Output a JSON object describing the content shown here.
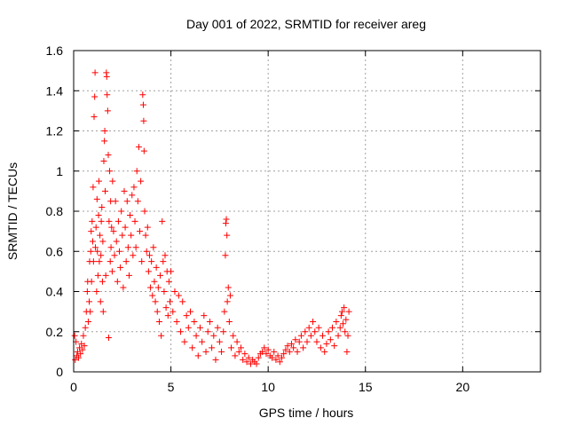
{
  "chart_data": {
    "type": "scatter",
    "title": "Day 001 of 2022, SRMTID for receiver areg",
    "xlabel": "GPS time / hours",
    "ylabel": "SRMTID / TECUs",
    "xlim": [
      0,
      24
    ],
    "ylim": [
      0,
      1.6
    ],
    "grid": true,
    "marker": "+",
    "color": "#ff0000",
    "xticks": [
      0,
      5,
      10,
      15,
      20
    ],
    "xtick_labels": [
      "0",
      "5",
      "10",
      "15",
      "20"
    ],
    "yticks": [
      0,
      0.2,
      0.4,
      0.6,
      0.8,
      1.0,
      1.2,
      1.4,
      1.6
    ],
    "ytick_labels": [
      "0",
      "0.2",
      "0.4",
      "0.6",
      "0.8",
      "1",
      "1.2",
      "1.4",
      "1.6"
    ],
    "series": [
      {
        "name": "SRMTID",
        "points": [
          [
            0.05,
            0.18
          ],
          [
            0.08,
            0.06
          ],
          [
            0.12,
            0.15
          ],
          [
            0.15,
            0.08
          ],
          [
            0.2,
            0.1
          ],
          [
            0.25,
            0.07
          ],
          [
            0.3,
            0.12
          ],
          [
            0.35,
            0.09
          ],
          [
            0.4,
            0.14
          ],
          [
            0.45,
            0.11
          ],
          [
            0.5,
            0.18
          ],
          [
            0.55,
            0.13
          ],
          [
            0.6,
            0.22
          ],
          [
            0.65,
            0.3
          ],
          [
            0.7,
            0.4
          ],
          [
            0.72,
            0.45
          ],
          [
            0.75,
            0.25
          ],
          [
            0.8,
            0.35
          ],
          [
            0.82,
            0.55
          ],
          [
            0.85,
            0.3
          ],
          [
            0.88,
            0.6
          ],
          [
            0.9,
            0.7
          ],
          [
            0.92,
            0.45
          ],
          [
            0.95,
            0.75
          ],
          [
            0.98,
            0.65
          ],
          [
            1.0,
            0.92
          ],
          [
            1.02,
            0.55
          ],
          [
            1.05,
            1.27
          ],
          [
            1.08,
            1.37
          ],
          [
            1.1,
            1.49
          ],
          [
            1.12,
            0.62
          ],
          [
            1.15,
            0.72
          ],
          [
            1.18,
            0.4
          ],
          [
            1.2,
            0.86
          ],
          [
            1.22,
            0.6
          ],
          [
            1.25,
            0.48
          ],
          [
            1.28,
            0.78
          ],
          [
            1.3,
            0.95
          ],
          [
            1.32,
            0.55
          ],
          [
            1.35,
            0.68
          ],
          [
            1.38,
            0.35
          ],
          [
            1.4,
            0.58
          ],
          [
            1.42,
            0.75
          ],
          [
            1.45,
            0.82
          ],
          [
            1.48,
            0.45
          ],
          [
            1.5,
            0.65
          ],
          [
            1.52,
            0.3
          ],
          [
            1.55,
            1.05
          ],
          [
            1.58,
            1.15
          ],
          [
            1.6,
            1.2
          ],
          [
            1.62,
            0.9
          ],
          [
            1.65,
            0.48
          ],
          [
            1.68,
            1.49
          ],
          [
            1.7,
            1.47
          ],
          [
            1.72,
            1.38
          ],
          [
            1.75,
            1.3
          ],
          [
            1.78,
            1.08
          ],
          [
            1.8,
            0.17
          ],
          [
            1.82,
            0.75
          ],
          [
            1.85,
            1.0
          ],
          [
            1.88,
            0.55
          ],
          [
            1.9,
            0.85
          ],
          [
            1.92,
            0.62
          ],
          [
            1.95,
            0.72
          ],
          [
            1.98,
            0.5
          ],
          [
            2.0,
            0.95
          ],
          [
            2.05,
            0.7
          ],
          [
            2.1,
            0.58
          ],
          [
            2.15,
            0.85
          ],
          [
            2.2,
            0.65
          ],
          [
            2.25,
            0.45
          ],
          [
            2.3,
            0.75
          ],
          [
            2.35,
            0.6
          ],
          [
            2.4,
            0.52
          ],
          [
            2.45,
            0.8
          ],
          [
            2.5,
            0.68
          ],
          [
            2.55,
            0.42
          ],
          [
            2.6,
            0.9
          ],
          [
            2.65,
            0.72
          ],
          [
            2.7,
            0.55
          ],
          [
            2.75,
            0.85
          ],
          [
            2.8,
            0.62
          ],
          [
            2.85,
            0.48
          ],
          [
            2.9,
            0.78
          ],
          [
            2.95,
            0.68
          ],
          [
            3.0,
            0.88
          ],
          [
            3.05,
            0.58
          ],
          [
            3.1,
            0.92
          ],
          [
            3.15,
            0.75
          ],
          [
            3.2,
            0.62
          ],
          [
            3.25,
            1.0
          ],
          [
            3.3,
            0.85
          ],
          [
            3.35,
            1.12
          ],
          [
            3.4,
            0.7
          ],
          [
            3.45,
            0.95
          ],
          [
            3.5,
            0.55
          ],
          [
            3.55,
            1.38
          ],
          [
            3.58,
            1.33
          ],
          [
            3.6,
            1.25
          ],
          [
            3.62,
            1.1
          ],
          [
            3.65,
            0.8
          ],
          [
            3.7,
            0.68
          ],
          [
            3.75,
            0.6
          ],
          [
            3.8,
            0.72
          ],
          [
            3.85,
            0.5
          ],
          [
            3.9,
            0.58
          ],
          [
            3.95,
            0.42
          ],
          [
            4.0,
            0.55
          ],
          [
            4.05,
            0.38
          ],
          [
            4.1,
            0.62
          ],
          [
            4.15,
            0.45
          ],
          [
            4.2,
            0.35
          ],
          [
            4.25,
            0.52
          ],
          [
            4.3,
            0.3
          ],
          [
            4.35,
            0.42
          ],
          [
            4.4,
            0.25
          ],
          [
            4.45,
            0.48
          ],
          [
            4.5,
            0.18
          ],
          [
            4.55,
            0.75
          ],
          [
            4.6,
            0.55
          ],
          [
            4.65,
            0.4
          ],
          [
            4.7,
            0.58
          ],
          [
            4.75,
            0.32
          ],
          [
            4.8,
            0.5
          ],
          [
            4.85,
            0.28
          ],
          [
            4.9,
            0.45
          ],
          [
            4.95,
            0.35
          ],
          [
            5.0,
            0.5
          ],
          [
            5.1,
            0.3
          ],
          [
            5.2,
            0.4
          ],
          [
            5.3,
            0.25
          ],
          [
            5.4,
            0.38
          ],
          [
            5.5,
            0.2
          ],
          [
            5.6,
            0.35
          ],
          [
            5.7,
            0.15
          ],
          [
            5.8,
            0.28
          ],
          [
            5.9,
            0.22
          ],
          [
            6.0,
            0.3
          ],
          [
            6.1,
            0.12
          ],
          [
            6.2,
            0.25
          ],
          [
            6.3,
            0.18
          ],
          [
            6.4,
            0.08
          ],
          [
            6.5,
            0.22
          ],
          [
            6.6,
            0.15
          ],
          [
            6.7,
            0.28
          ],
          [
            6.8,
            0.1
          ],
          [
            6.9,
            0.2
          ],
          [
            7.0,
            0.25
          ],
          [
            7.1,
            0.12
          ],
          [
            7.2,
            0.18
          ],
          [
            7.3,
            0.06
          ],
          [
            7.4,
            0.22
          ],
          [
            7.5,
            0.15
          ],
          [
            7.6,
            0.1
          ],
          [
            7.7,
            0.2
          ],
          [
            7.75,
            0.3
          ],
          [
            7.8,
            0.58
          ],
          [
            7.82,
            0.74
          ],
          [
            7.85,
            0.76
          ],
          [
            7.88,
            0.68
          ],
          [
            7.9,
            0.35
          ],
          [
            7.95,
            0.42
          ],
          [
            8.0,
            0.25
          ],
          [
            8.05,
            0.38
          ],
          [
            8.1,
            0.12
          ],
          [
            8.2,
            0.18
          ],
          [
            8.3,
            0.08
          ],
          [
            8.4,
            0.15
          ],
          [
            8.5,
            0.1
          ],
          [
            8.6,
            0.12
          ],
          [
            8.7,
            0.06
          ],
          [
            8.8,
            0.09
          ],
          [
            8.9,
            0.05
          ],
          [
            9.0,
            0.07
          ],
          [
            9.1,
            0.04
          ],
          [
            9.2,
            0.06
          ],
          [
            9.3,
            0.05
          ],
          [
            9.4,
            0.04
          ],
          [
            9.5,
            0.07
          ],
          [
            9.6,
            0.09
          ],
          [
            9.7,
            0.1
          ],
          [
            9.8,
            0.12
          ],
          [
            9.9,
            0.09
          ],
          [
            10.0,
            0.11
          ],
          [
            10.1,
            0.08
          ],
          [
            10.2,
            0.07
          ],
          [
            10.3,
            0.1
          ],
          [
            10.4,
            0.06
          ],
          [
            10.5,
            0.08
          ],
          [
            10.6,
            0.05
          ],
          [
            10.7,
            0.07
          ],
          [
            10.8,
            0.09
          ],
          [
            10.9,
            0.11
          ],
          [
            11.0,
            0.13
          ],
          [
            11.1,
            0.1
          ],
          [
            11.2,
            0.14
          ],
          [
            11.3,
            0.12
          ],
          [
            11.4,
            0.16
          ],
          [
            11.5,
            0.1
          ],
          [
            11.6,
            0.15
          ],
          [
            11.7,
            0.18
          ],
          [
            11.8,
            0.12
          ],
          [
            11.9,
            0.2
          ],
          [
            12.0,
            0.15
          ],
          [
            12.1,
            0.22
          ],
          [
            12.2,
            0.18
          ],
          [
            12.3,
            0.25
          ],
          [
            12.4,
            0.2
          ],
          [
            12.5,
            0.15
          ],
          [
            12.6,
            0.22
          ],
          [
            12.7,
            0.12
          ],
          [
            12.8,
            0.18
          ],
          [
            12.9,
            0.1
          ],
          [
            13.0,
            0.14
          ],
          [
            13.1,
            0.2
          ],
          [
            13.2,
            0.16
          ],
          [
            13.3,
            0.22
          ],
          [
            13.4,
            0.13
          ],
          [
            13.5,
            0.25
          ],
          [
            13.6,
            0.18
          ],
          [
            13.7,
            0.22
          ],
          [
            13.75,
            0.28
          ],
          [
            13.8,
            0.3
          ],
          [
            13.85,
            0.24
          ],
          [
            13.9,
            0.32
          ],
          [
            13.95,
            0.2
          ],
          [
            14.0,
            0.26
          ],
          [
            14.05,
            0.1
          ],
          [
            14.1,
            0.18
          ],
          [
            14.15,
            0.3
          ]
        ]
      }
    ]
  }
}
